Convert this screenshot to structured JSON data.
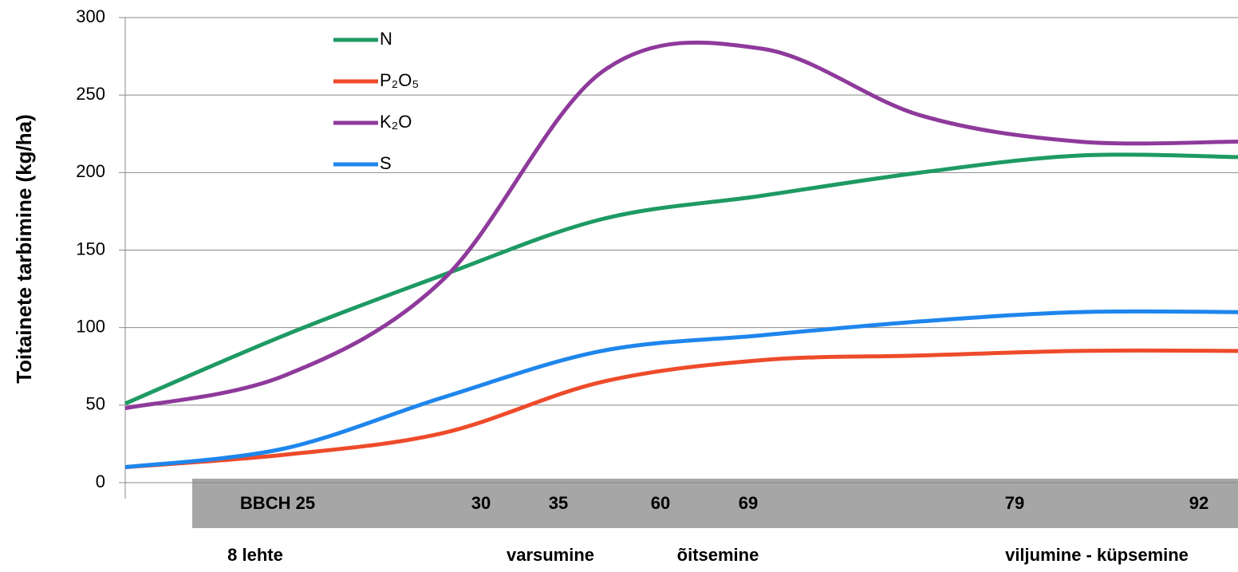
{
  "chart_data": {
    "type": "line",
    "y_label": "Toitainete tarbimine (kg/ha)",
    "categories": [
      null,
      null,
      null,
      null,
      null,
      null,
      null,
      null
    ],
    "series": [
      {
        "name": "N",
        "color": "#1e9a63",
        "values": [
          51,
          95,
          134,
          170,
          185,
          200,
          211,
          210
        ]
      },
      {
        "name": "P₂O₅",
        "color": "#ee4b2b",
        "values": [
          10,
          18,
          32,
          65,
          79,
          82,
          85,
          85
        ]
      },
      {
        "name": "K₂O",
        "color": "#8e3a9b",
        "values": [
          48,
          69,
          131,
          265,
          280,
          237,
          220,
          220
        ]
      },
      {
        "name": "S",
        "color": "#1e86ec",
        "values": [
          10,
          22,
          55,
          85,
          95,
          104,
          110,
          110
        ]
      }
    ],
    "ylim": [
      0,
      300
    ],
    "yticks": [
      0,
      50,
      100,
      150,
      200,
      250,
      300
    ],
    "grid": true,
    "band_labels": [
      "BBCH 25",
      "30",
      "35",
      "60",
      "69",
      "79",
      "92"
    ],
    "stage_labels": [
      "8 lehte",
      "varsumine",
      "õitsemine",
      "viljumine - küpsemine"
    ]
  }
}
